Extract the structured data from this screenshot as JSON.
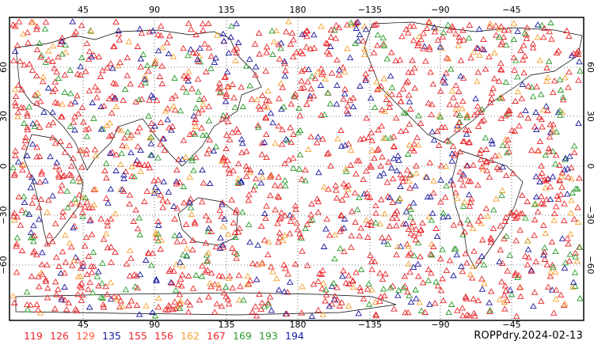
{
  "map": {
    "top_lon_ticks": [
      "45",
      "90",
      "135",
      "180",
      "−135",
      "−90",
      "−45"
    ],
    "bottom_lon_ticks": [
      "45",
      "90",
      "135",
      "180",
      "−135",
      "−90",
      "−45"
    ],
    "left_lat_ticks": [
      "60",
      "30",
      "0",
      "−30",
      "−60"
    ],
    "right_lat_ticks": [
      "60",
      "30",
      "0",
      "−30",
      "−60"
    ],
    "marker_shape": "open-triangle"
  },
  "legend": {
    "items": [
      {
        "label": "119",
        "color": "#e8262a"
      },
      {
        "label": "126",
        "color": "#e8262a"
      },
      {
        "label": "129",
        "color": "#ff5a36"
      },
      {
        "label": "135",
        "color": "#1a1aa0"
      },
      {
        "label": "155",
        "color": "#e8262a"
      },
      {
        "label": "156",
        "color": "#e8262a"
      },
      {
        "label": "162",
        "color": "#f5a030"
      },
      {
        "label": "167",
        "color": "#e8262a"
      },
      {
        "label": "169",
        "color": "#2a9a2a"
      },
      {
        "label": "193",
        "color": "#2a9a2a"
      },
      {
        "label": "194",
        "color": "#1a1aa0"
      }
    ]
  },
  "caption": "ROPPdry.2024-02-13"
}
